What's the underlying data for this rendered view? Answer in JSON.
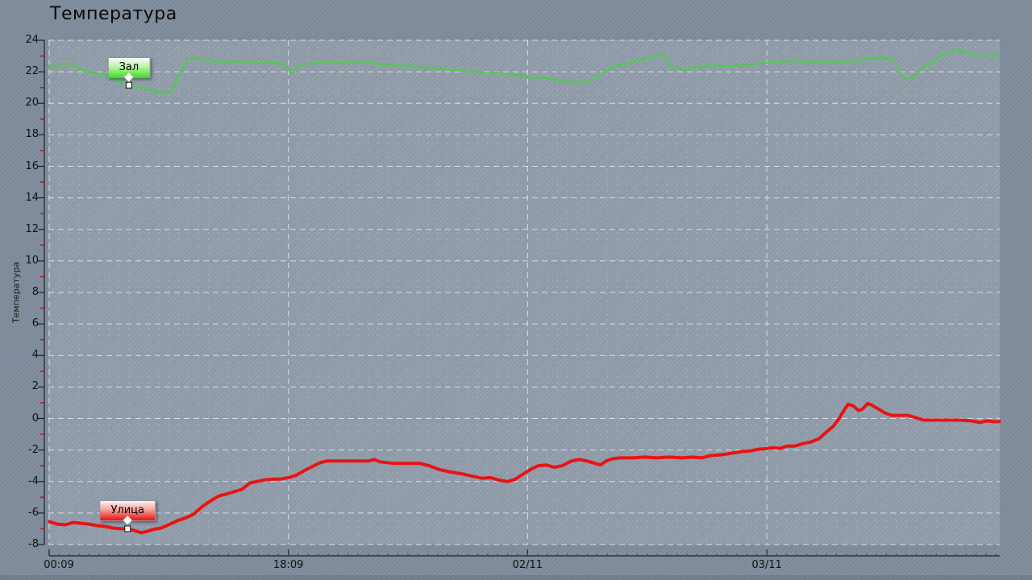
{
  "title": "Температура",
  "colors": {
    "background": "#7d8a9a",
    "plot_overlay": "rgba(255,255,255,0.14)",
    "grid_major": "#e3e9ee",
    "grid_minor": "#ccd5dd",
    "axis_line": "#1c222a",
    "minor_tick_red": "#cc1111",
    "series_zal": "#4ecb4e",
    "series_ulitsa": "#e81414"
  },
  "chart_data": {
    "type": "line",
    "title": "Температура",
    "xlabel": "",
    "ylabel": "Температура",
    "ylim": [
      -8,
      24
    ],
    "y_tick_step": 2,
    "y_minor_step": 1,
    "grid": true,
    "x_unit": "hours since first tick (00:09 01/11)",
    "x_range_hours": [
      0,
      71.53
    ],
    "x_minor_step_hours": 0.75,
    "x_ticks": [
      {
        "h": 0,
        "label": "00:09"
      },
      {
        "h": 18,
        "label": "18:09"
      },
      {
        "h": 36,
        "label": "02/11"
      },
      {
        "h": 54,
        "label": "03/11"
      }
    ],
    "series": [
      {
        "name": "Зал",
        "color": "#4ecb4e",
        "width": 2.4,
        "points": [
          [
            0,
            22.4
          ],
          [
            0.4,
            22.15
          ],
          [
            1.0,
            22.55
          ],
          [
            1.6,
            22.5
          ],
          [
            2.4,
            22.1
          ],
          [
            3.1,
            22.0
          ],
          [
            3.9,
            21.8
          ],
          [
            4.8,
            21.55
          ],
          [
            5.5,
            21.3
          ],
          [
            6.0,
            21.15
          ],
          [
            6.7,
            21.05
          ],
          [
            7.3,
            20.9
          ],
          [
            8.1,
            20.75
          ],
          [
            8.7,
            20.7
          ],
          [
            9.2,
            20.75
          ],
          [
            9.5,
            21.3
          ],
          [
            10.0,
            22.2
          ],
          [
            10.4,
            22.75
          ],
          [
            10.9,
            22.85
          ],
          [
            11.5,
            22.8
          ],
          [
            12.2,
            22.7
          ],
          [
            13.0,
            22.6
          ],
          [
            13.9,
            22.65
          ],
          [
            14.8,
            22.6
          ],
          [
            15.7,
            22.55
          ],
          [
            16.6,
            22.6
          ],
          [
            17.4,
            22.55
          ],
          [
            17.8,
            22.3
          ],
          [
            18.3,
            21.9
          ],
          [
            18.6,
            22.2
          ],
          [
            19.1,
            22.5
          ],
          [
            20.0,
            22.55
          ],
          [
            20.9,
            22.6
          ],
          [
            21.8,
            22.55
          ],
          [
            23.0,
            22.6
          ],
          [
            23.9,
            22.6
          ],
          [
            24.8,
            22.5
          ],
          [
            25.7,
            22.45
          ],
          [
            26.6,
            22.4
          ],
          [
            27.5,
            22.3
          ],
          [
            28.5,
            22.25
          ],
          [
            29.4,
            22.2
          ],
          [
            30.3,
            22.1
          ],
          [
            31.2,
            22.05
          ],
          [
            32.1,
            22.0
          ],
          [
            33.0,
            21.9
          ],
          [
            33.6,
            21.95
          ],
          [
            34.2,
            21.85
          ],
          [
            35.1,
            21.8
          ],
          [
            35.7,
            21.75
          ],
          [
            36.0,
            21.7
          ],
          [
            36.6,
            21.6
          ],
          [
            37.1,
            21.65
          ],
          [
            37.6,
            21.55
          ],
          [
            38.2,
            21.5
          ],
          [
            38.8,
            21.4
          ],
          [
            39.4,
            21.3
          ],
          [
            39.9,
            21.3
          ],
          [
            40.3,
            21.35
          ],
          [
            40.9,
            21.5
          ],
          [
            41.5,
            21.85
          ],
          [
            42.1,
            22.2
          ],
          [
            42.7,
            22.4
          ],
          [
            43.3,
            22.5
          ],
          [
            43.9,
            22.6
          ],
          [
            44.2,
            22.75
          ],
          [
            44.5,
            22.7
          ],
          [
            44.8,
            22.8
          ],
          [
            45.3,
            22.85
          ],
          [
            45.7,
            23.05
          ],
          [
            46.1,
            23.15
          ],
          [
            46.4,
            23.0
          ],
          [
            46.7,
            22.3
          ],
          [
            47.3,
            22.25
          ],
          [
            47.9,
            22.1
          ],
          [
            48.6,
            22.3
          ],
          [
            49.4,
            22.4
          ],
          [
            50.3,
            22.4
          ],
          [
            51.2,
            22.35
          ],
          [
            52.1,
            22.4
          ],
          [
            53.0,
            22.5
          ],
          [
            53.6,
            22.55
          ],
          [
            54.2,
            22.6
          ],
          [
            54.8,
            22.55
          ],
          [
            55.5,
            22.65
          ],
          [
            56.1,
            22.7
          ],
          [
            56.7,
            22.65
          ],
          [
            57.3,
            22.6
          ],
          [
            57.9,
            22.65
          ],
          [
            58.5,
            22.6
          ],
          [
            59.1,
            22.65
          ],
          [
            59.7,
            22.6
          ],
          [
            60.3,
            22.65
          ],
          [
            60.9,
            22.75
          ],
          [
            61.5,
            22.8
          ],
          [
            62.1,
            22.85
          ],
          [
            62.7,
            22.9
          ],
          [
            63.3,
            22.85
          ],
          [
            63.6,
            22.6
          ],
          [
            63.9,
            22.1
          ],
          [
            64.3,
            21.7
          ],
          [
            64.6,
            21.5
          ],
          [
            64.9,
            21.55
          ],
          [
            65.3,
            21.9
          ],
          [
            65.8,
            22.3
          ],
          [
            66.2,
            22.5
          ],
          [
            66.7,
            22.8
          ],
          [
            67.3,
            23.1
          ],
          [
            67.9,
            23.3
          ],
          [
            68.3,
            23.4
          ],
          [
            68.8,
            23.3
          ],
          [
            69.2,
            23.15
          ],
          [
            69.7,
            23.05
          ],
          [
            70.3,
            23.0
          ],
          [
            70.9,
            23.05
          ],
          [
            71.5,
            23.1
          ]
        ]
      },
      {
        "name": "Улица",
        "color": "#e81414",
        "width": 4,
        "points": [
          [
            0,
            -6.55
          ],
          [
            0.6,
            -6.7
          ],
          [
            1.2,
            -6.75
          ],
          [
            1.8,
            -6.6
          ],
          [
            2.4,
            -6.65
          ],
          [
            3.0,
            -6.7
          ],
          [
            3.6,
            -6.8
          ],
          [
            4.2,
            -6.85
          ],
          [
            4.8,
            -6.95
          ],
          [
            5.4,
            -7.0
          ],
          [
            5.9,
            -7.0
          ],
          [
            6.4,
            -7.1
          ],
          [
            6.9,
            -7.25
          ],
          [
            7.2,
            -7.2
          ],
          [
            7.8,
            -7.05
          ],
          [
            8.4,
            -6.95
          ],
          [
            9.0,
            -6.75
          ],
          [
            9.6,
            -6.5
          ],
          [
            10.3,
            -6.3
          ],
          [
            10.9,
            -6.05
          ],
          [
            11.5,
            -5.6
          ],
          [
            12.0,
            -5.3
          ],
          [
            12.4,
            -5.1
          ],
          [
            12.8,
            -4.9
          ],
          [
            13.3,
            -4.8
          ],
          [
            13.9,
            -4.65
          ],
          [
            14.5,
            -4.5
          ],
          [
            15.1,
            -4.1
          ],
          [
            15.6,
            -4.0
          ],
          [
            16.2,
            -3.9
          ],
          [
            16.8,
            -3.85
          ],
          [
            17.4,
            -3.85
          ],
          [
            18.0,
            -3.75
          ],
          [
            18.6,
            -3.6
          ],
          [
            19.2,
            -3.3
          ],
          [
            19.8,
            -3.05
          ],
          [
            20.4,
            -2.8
          ],
          [
            20.9,
            -2.7
          ],
          [
            21.5,
            -2.7
          ],
          [
            22.1,
            -2.7
          ],
          [
            22.8,
            -2.7
          ],
          [
            23.4,
            -2.7
          ],
          [
            24.0,
            -2.7
          ],
          [
            24.5,
            -2.6
          ],
          [
            24.9,
            -2.75
          ],
          [
            25.4,
            -2.8
          ],
          [
            26.0,
            -2.85
          ],
          [
            26.6,
            -2.85
          ],
          [
            27.2,
            -2.85
          ],
          [
            27.9,
            -2.85
          ],
          [
            28.6,
            -3.0
          ],
          [
            29.4,
            -3.25
          ],
          [
            30.2,
            -3.4
          ],
          [
            31.0,
            -3.5
          ],
          [
            31.8,
            -3.65
          ],
          [
            32.6,
            -3.8
          ],
          [
            33.2,
            -3.75
          ],
          [
            33.8,
            -3.9
          ],
          [
            34.5,
            -4.0
          ],
          [
            35.1,
            -3.85
          ],
          [
            35.7,
            -3.5
          ],
          [
            36.3,
            -3.2
          ],
          [
            36.8,
            -3.0
          ],
          [
            37.4,
            -2.95
          ],
          [
            38.0,
            -3.1
          ],
          [
            38.6,
            -3.0
          ],
          [
            39.3,
            -2.7
          ],
          [
            39.9,
            -2.6
          ],
          [
            40.5,
            -2.7
          ],
          [
            41.1,
            -2.85
          ],
          [
            41.5,
            -2.95
          ],
          [
            41.9,
            -2.7
          ],
          [
            42.4,
            -2.55
          ],
          [
            43.0,
            -2.5
          ],
          [
            43.9,
            -2.5
          ],
          [
            44.8,
            -2.45
          ],
          [
            45.7,
            -2.5
          ],
          [
            46.7,
            -2.45
          ],
          [
            47.6,
            -2.5
          ],
          [
            48.4,
            -2.45
          ],
          [
            49.1,
            -2.5
          ],
          [
            49.8,
            -2.35
          ],
          [
            50.6,
            -2.3
          ],
          [
            51.4,
            -2.2
          ],
          [
            52.1,
            -2.1
          ],
          [
            52.8,
            -2.05
          ],
          [
            53.4,
            -1.95
          ],
          [
            54.1,
            -1.9
          ],
          [
            54.5,
            -1.85
          ],
          [
            55.0,
            -1.9
          ],
          [
            55.5,
            -1.75
          ],
          [
            56.1,
            -1.75
          ],
          [
            56.7,
            -1.6
          ],
          [
            57.3,
            -1.5
          ],
          [
            57.9,
            -1.3
          ],
          [
            58.5,
            -0.85
          ],
          [
            59.0,
            -0.5
          ],
          [
            59.4,
            -0.05
          ],
          [
            59.8,
            0.5
          ],
          [
            60.1,
            0.9
          ],
          [
            60.5,
            0.8
          ],
          [
            60.9,
            0.5
          ],
          [
            61.2,
            0.6
          ],
          [
            61.6,
            0.95
          ],
          [
            61.9,
            0.85
          ],
          [
            62.4,
            0.6
          ],
          [
            62.9,
            0.35
          ],
          [
            63.4,
            0.2
          ],
          [
            64.0,
            0.2
          ],
          [
            64.6,
            0.2
          ],
          [
            65.2,
            0.05
          ],
          [
            65.8,
            -0.1
          ],
          [
            66.7,
            -0.1
          ],
          [
            67.6,
            -0.1
          ],
          [
            68.5,
            -0.1
          ],
          [
            69.4,
            -0.15
          ],
          [
            70.0,
            -0.25
          ],
          [
            70.6,
            -0.15
          ],
          [
            71.1,
            -0.2
          ],
          [
            71.5,
            -0.2
          ]
        ]
      }
    ],
    "annotations": [
      {
        "label": "Зал",
        "h": 6.0,
        "value": 21.15
      },
      {
        "label": "Улица",
        "h": 5.9,
        "value": -7.0
      }
    ],
    "legend_position": "inline-callouts"
  }
}
